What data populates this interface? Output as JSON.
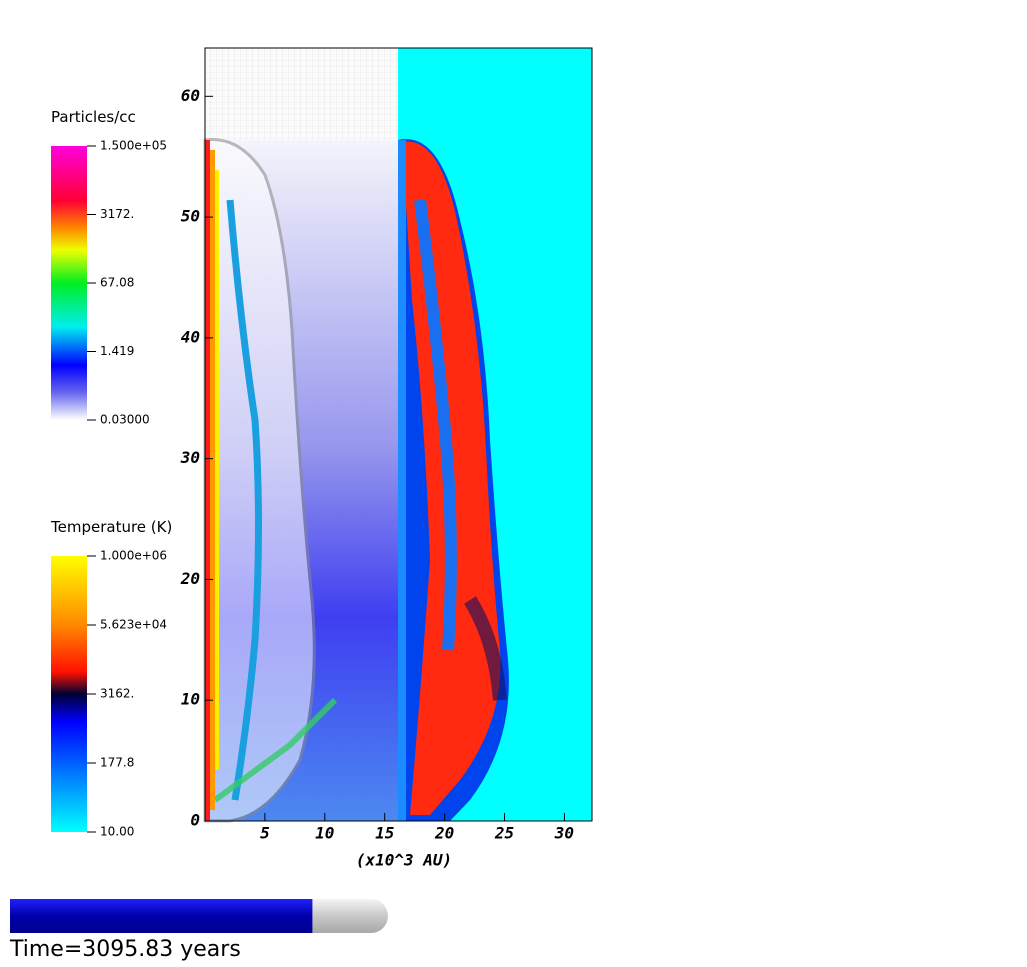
{
  "colorbars": [
    {
      "title": "Particles/cc",
      "labels": [
        "1.500e+05",
        "3172.",
        "67.08",
        "1.419",
        "0.03000"
      ]
    },
    {
      "title": "Temperature (K)",
      "labels": [
        "1.000e+06",
        "5.623e+04",
        "3162.",
        "177.8",
        "10.00"
      ]
    }
  ],
  "axes": {
    "ylim": [
      0,
      64
    ],
    "yticks": [
      0,
      10,
      20,
      30,
      40,
      50,
      60
    ],
    "xlim": [
      0,
      32.3
    ],
    "xticks": [
      5,
      10,
      15,
      20,
      25,
      30
    ],
    "xlabel": "(x10^3 AU)"
  },
  "progress": {
    "value": 0.8
  },
  "time_label": "Time=3095.83 years"
}
